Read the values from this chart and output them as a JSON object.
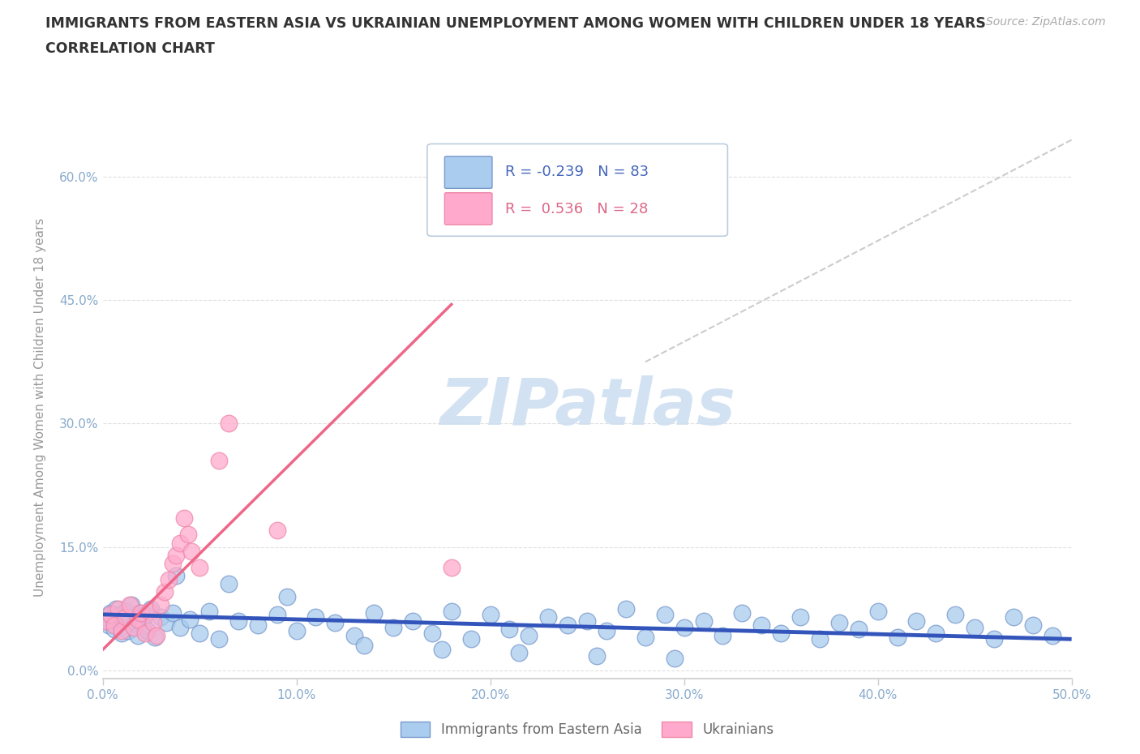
{
  "title_line1": "IMMIGRANTS FROM EASTERN ASIA VS UKRAINIAN UNEMPLOYMENT AMONG WOMEN WITH CHILDREN UNDER 18 YEARS",
  "title_line2": "CORRELATION CHART",
  "source_text": "Source: ZipAtlas.com",
  "ylabel": "Unemployment Among Women with Children Under 18 years",
  "xlim": [
    0.0,
    0.5
  ],
  "ylim": [
    -0.01,
    0.65
  ],
  "xtick_vals": [
    0.0,
    0.1,
    0.2,
    0.3,
    0.4,
    0.5
  ],
  "xtick_labels": [
    "0.0%",
    "10.0%",
    "20.0%",
    "30.0%",
    "40.0%",
    "50.0%"
  ],
  "ytick_vals": [
    0.0,
    0.15,
    0.3,
    0.45,
    0.6
  ],
  "ytick_labels": [
    "0.0%",
    "15.0%",
    "30.0%",
    "45.0%",
    "60.0%"
  ],
  "blue_scatter_x": [
    0.002,
    0.003,
    0.004,
    0.005,
    0.006,
    0.007,
    0.008,
    0.009,
    0.01,
    0.011,
    0.012,
    0.013,
    0.014,
    0.015,
    0.016,
    0.017,
    0.018,
    0.019,
    0.02,
    0.021,
    0.022,
    0.023,
    0.025,
    0.027,
    0.03,
    0.033,
    0.036,
    0.04,
    0.045,
    0.05,
    0.055,
    0.06,
    0.07,
    0.08,
    0.09,
    0.1,
    0.11,
    0.12,
    0.13,
    0.14,
    0.15,
    0.16,
    0.17,
    0.18,
    0.19,
    0.2,
    0.21,
    0.22,
    0.23,
    0.24,
    0.25,
    0.26,
    0.27,
    0.28,
    0.29,
    0.3,
    0.31,
    0.32,
    0.33,
    0.34,
    0.35,
    0.36,
    0.37,
    0.38,
    0.39,
    0.4,
    0.41,
    0.42,
    0.43,
    0.44,
    0.45,
    0.46,
    0.47,
    0.48,
    0.49,
    0.038,
    0.065,
    0.095,
    0.135,
    0.175,
    0.215,
    0.255,
    0.295
  ],
  "blue_scatter_y": [
    0.06,
    0.055,
    0.07,
    0.065,
    0.05,
    0.075,
    0.058,
    0.068,
    0.045,
    0.062,
    0.072,
    0.048,
    0.065,
    0.08,
    0.052,
    0.058,
    0.042,
    0.07,
    0.06,
    0.055,
    0.068,
    0.048,
    0.075,
    0.04,
    0.065,
    0.058,
    0.07,
    0.052,
    0.062,
    0.045,
    0.072,
    0.038,
    0.06,
    0.055,
    0.068,
    0.048,
    0.065,
    0.058,
    0.042,
    0.07,
    0.052,
    0.06,
    0.045,
    0.072,
    0.038,
    0.068,
    0.05,
    0.042,
    0.065,
    0.055,
    0.06,
    0.048,
    0.075,
    0.04,
    0.068,
    0.052,
    0.06,
    0.042,
    0.07,
    0.055,
    0.045,
    0.065,
    0.038,
    0.058,
    0.05,
    0.072,
    0.04,
    0.06,
    0.045,
    0.068,
    0.052,
    0.038,
    0.065,
    0.055,
    0.042,
    0.115,
    0.105,
    0.09,
    0.03,
    0.025,
    0.022,
    0.018,
    0.015
  ],
  "pink_scatter_x": [
    0.002,
    0.004,
    0.006,
    0.008,
    0.01,
    0.012,
    0.014,
    0.016,
    0.018,
    0.02,
    0.022,
    0.024,
    0.026,
    0.028,
    0.03,
    0.032,
    0.034,
    0.036,
    0.038,
    0.04,
    0.042,
    0.044,
    0.046,
    0.05,
    0.06,
    0.18,
    0.065,
    0.09
  ],
  "pink_scatter_y": [
    0.06,
    0.068,
    0.055,
    0.075,
    0.048,
    0.065,
    0.08,
    0.052,
    0.062,
    0.07,
    0.045,
    0.072,
    0.058,
    0.042,
    0.08,
    0.095,
    0.11,
    0.13,
    0.14,
    0.155,
    0.185,
    0.165,
    0.145,
    0.125,
    0.255,
    0.125,
    0.3,
    0.17
  ],
  "blue_line_x": [
    0.0,
    0.5
  ],
  "blue_line_y": [
    0.068,
    0.038
  ],
  "pink_line_x": [
    0.0,
    0.18
  ],
  "pink_line_y": [
    0.025,
    0.445
  ],
  "dashed_line_x": [
    0.28,
    0.5
  ],
  "dashed_line_y": [
    0.375,
    0.645
  ],
  "blue_R": -0.239,
  "blue_N": 83,
  "pink_R": 0.536,
  "pink_N": 28,
  "blue_line_color": "#3355BB",
  "pink_line_color": "#EE6688",
  "blue_scatter_color": "#AACCEE",
  "pink_scatter_color": "#FFAACC",
  "blue_scatter_edge": "#7799CC",
  "pink_scatter_edge": "#EE88AA",
  "watermark_color": "#CCDDF0",
  "dashed_line_color": "#CCCCCC",
  "grid_color": "#E0E0E0",
  "title_color": "#333333",
  "axis_label_color": "#999999",
  "tick_label_color": "#88AACC",
  "source_color": "#AAAAAA",
  "legend_blue_fill": "#AACCEE",
  "legend_blue_edge": "#7799CC",
  "legend_pink_fill": "#FFAACC",
  "legend_pink_edge": "#EE88AA",
  "legend_text_blue": "#4466BB",
  "legend_text_pink": "#DD6688"
}
